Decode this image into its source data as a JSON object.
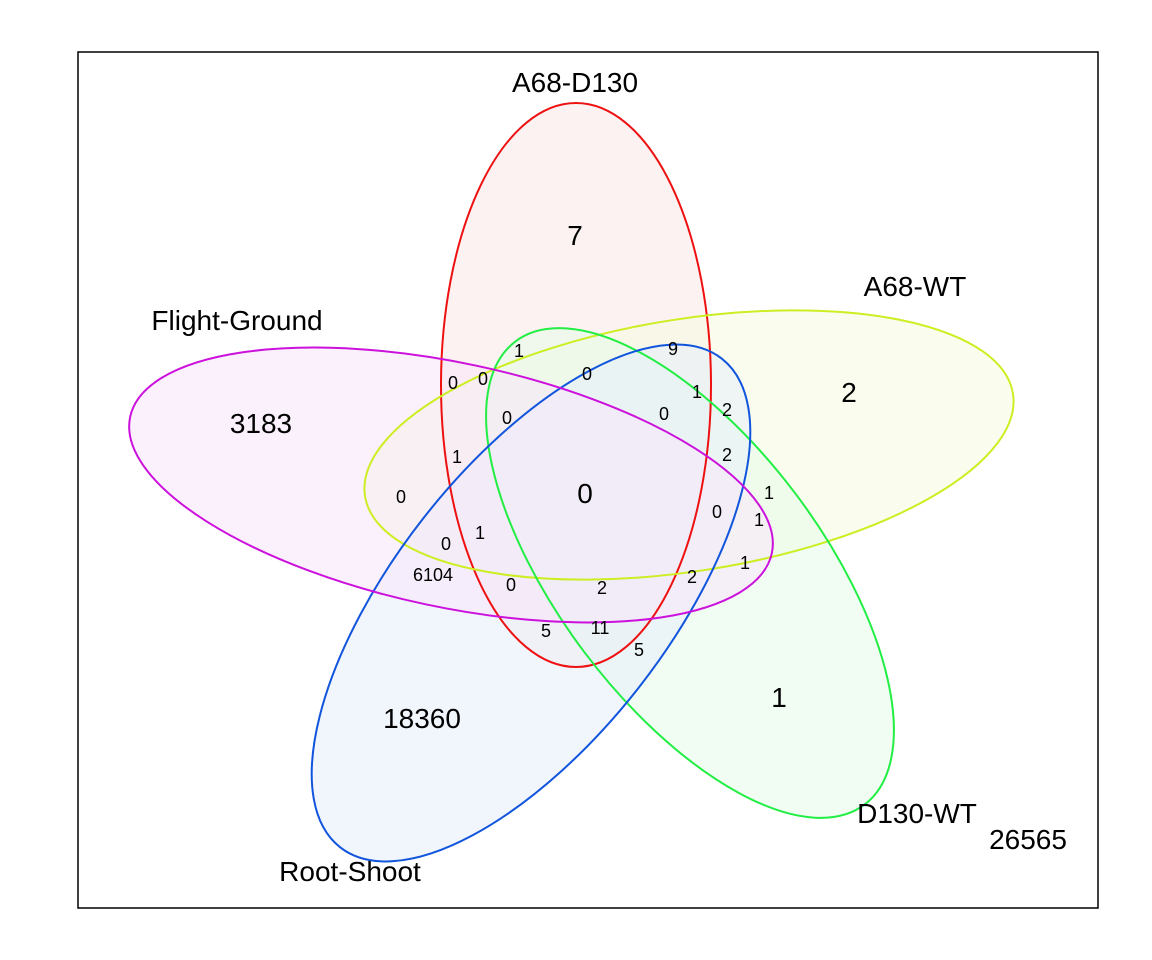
{
  "sets": [
    {
      "id": "a68_d130",
      "label": "A68-D130",
      "stroke": "#ee1111",
      "fill": "#fbe7e7"
    },
    {
      "id": "a68_wt",
      "label": "A68-WT",
      "stroke": "#ccee22",
      "fill": "#f6fbe0"
    },
    {
      "id": "d130_wt",
      "label": "D130-WT",
      "stroke": "#22ee44",
      "fill": "#e6fbe9"
    },
    {
      "id": "root_shoot",
      "label": "Root-Shoot",
      "stroke": "#1155dd",
      "fill": "#e6eefb"
    },
    {
      "id": "flight_ground",
      "label": "Flight-Ground",
      "stroke": "#cc11dd",
      "fill": "#f8e6f9"
    }
  ],
  "outside_count": "26565",
  "regions": [
    {
      "id": "a68_d130_only",
      "value": "7",
      "size": "big"
    },
    {
      "id": "a68_wt_only",
      "value": "2",
      "size": "big"
    },
    {
      "id": "d130_wt_only",
      "value": "1",
      "size": "big"
    },
    {
      "id": "root_shoot_only",
      "value": "18360",
      "size": "big"
    },
    {
      "id": "flight_ground_only",
      "value": "3183",
      "size": "big"
    },
    {
      "id": "all_five",
      "value": "0",
      "size": "big"
    },
    {
      "id": "r_1_top",
      "value": "1",
      "size": "small"
    },
    {
      "id": "r_9",
      "value": "9",
      "size": "small"
    },
    {
      "id": "r_0_top",
      "value": "0",
      "size": "small"
    },
    {
      "id": "r_0_left_a",
      "value": "0",
      "size": "small"
    },
    {
      "id": "r_0_left_b",
      "value": "0",
      "size": "small"
    },
    {
      "id": "r_1_blue_top",
      "value": "1",
      "size": "small"
    },
    {
      "id": "r_2_right_a",
      "value": "2",
      "size": "small"
    },
    {
      "id": "r_0_mid_left",
      "value": "0",
      "size": "small"
    },
    {
      "id": "r_0_mid_right",
      "value": "0",
      "size": "small"
    },
    {
      "id": "r_1_left",
      "value": "1",
      "size": "small"
    },
    {
      "id": "r_2_right_b",
      "value": "2",
      "size": "small"
    },
    {
      "id": "r_0_far_left",
      "value": "0",
      "size": "small"
    },
    {
      "id": "r_1_right_a",
      "value": "1",
      "size": "small"
    },
    {
      "id": "r_0_right_mid",
      "value": "0",
      "size": "small"
    },
    {
      "id": "r_1_right_b",
      "value": "1",
      "size": "small"
    },
    {
      "id": "r_1_center_left",
      "value": "1",
      "size": "small"
    },
    {
      "id": "r_0_lower_left",
      "value": "0",
      "size": "small"
    },
    {
      "id": "r_1_right_c",
      "value": "1",
      "size": "small"
    },
    {
      "id": "r_6104",
      "value": "6104",
      "size": "small"
    },
    {
      "id": "r_0_lower",
      "value": "0",
      "size": "small"
    },
    {
      "id": "r_2_lower",
      "value": "2",
      "size": "small"
    },
    {
      "id": "r_2_lower_right",
      "value": "2",
      "size": "small"
    },
    {
      "id": "r_5_left",
      "value": "5",
      "size": "small"
    },
    {
      "id": "r_11",
      "value": "11",
      "size": "small"
    },
    {
      "id": "r_5_right",
      "value": "5",
      "size": "small"
    }
  ]
}
